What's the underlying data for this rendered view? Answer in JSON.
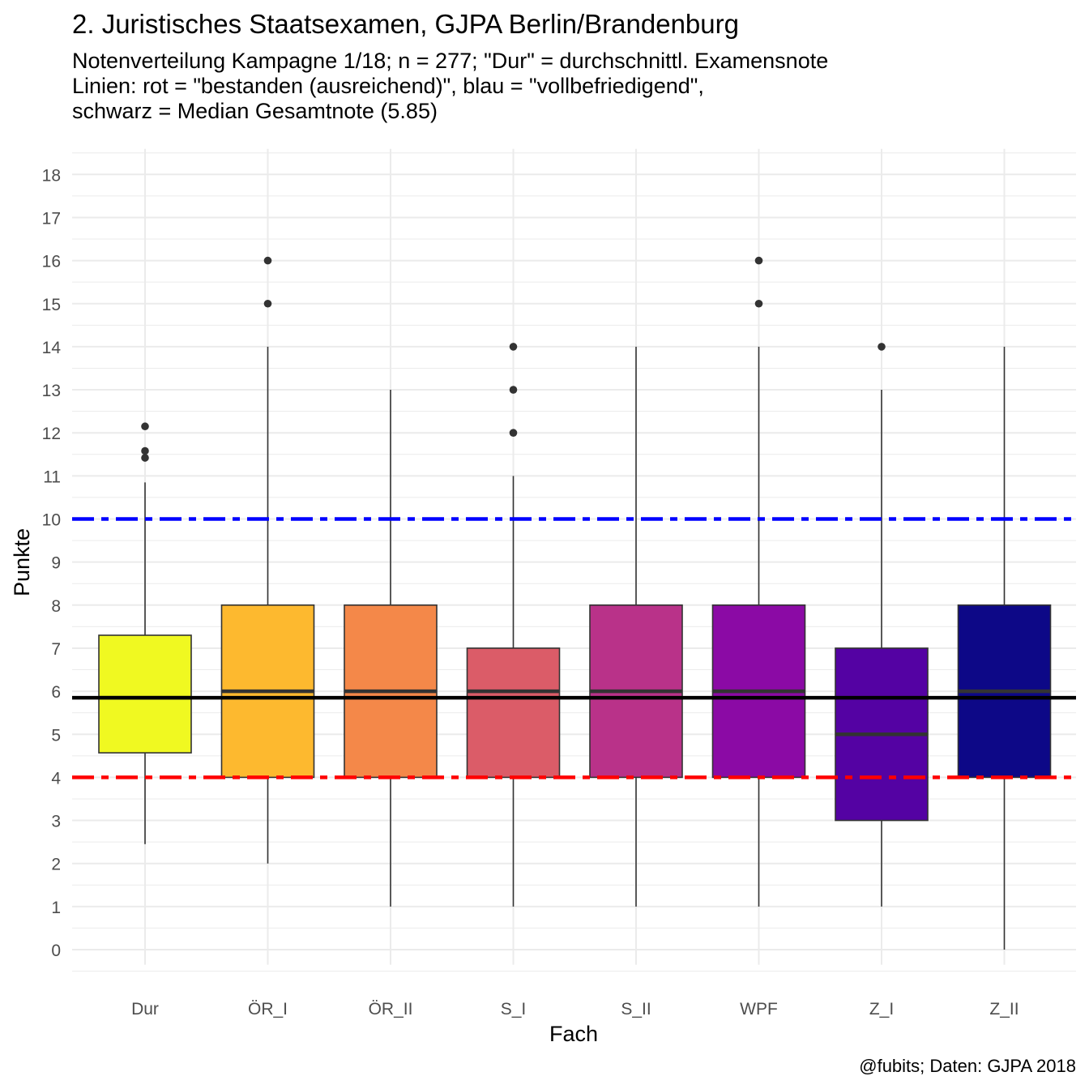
{
  "chart_data": {
    "type": "boxplot",
    "title": "2. Juristisches Staatsexamen, GJPA Berlin/Brandenburg",
    "subtitle_lines": [
      "Notenverteilung Kampagne 1/18; n = 277; \"Dur\" = durchschnittl. Examensnote",
      "Linien: rot  = \"bestanden (ausreichend)\", blau  = \"vollbefriedigend\",",
      "schwarz  = Median Gesamtnote (5.85)"
    ],
    "xlabel": "Fach",
    "ylabel": "Punkte",
    "caption": "@fubits; Daten: GJPA 2018",
    "ylim": [
      -0.5,
      18.5
    ],
    "yticks": [
      0,
      1,
      2,
      3,
      4,
      5,
      6,
      7,
      8,
      9,
      10,
      11,
      12,
      13,
      14,
      15,
      16,
      17,
      18
    ],
    "grid": true,
    "categories": [
      "Dur",
      "ÖR_I",
      "ÖR_II",
      "S_I",
      "S_II",
      "WPF",
      "Z_I",
      "Z_II"
    ],
    "boxes": [
      {
        "category": "Dur",
        "min": 2.45,
        "q1": 4.57,
        "median": 5.85,
        "q3": 7.3,
        "max": 10.85,
        "outliers": [
          11.42,
          11.58,
          12.15
        ],
        "fill": "#F0F921"
      },
      {
        "category": "ÖR_I",
        "min": 2,
        "q1": 4,
        "median": 6,
        "q3": 8,
        "max": 14,
        "outliers": [
          15,
          16
        ],
        "fill": "#FDB92F"
      },
      {
        "category": "ÖR_II",
        "min": 1,
        "q1": 4,
        "median": 6,
        "q3": 8,
        "max": 13,
        "outliers": [],
        "fill": "#F48849"
      },
      {
        "category": "S_I",
        "min": 1,
        "q1": 4,
        "median": 6,
        "q3": 7,
        "max": 11,
        "outliers": [
          12,
          13,
          14
        ],
        "fill": "#DB5C68"
      },
      {
        "category": "S_II",
        "min": 1,
        "q1": 4,
        "median": 6,
        "q3": 8,
        "max": 14,
        "outliers": [],
        "fill": "#B93289"
      },
      {
        "category": "WPF",
        "min": 1,
        "q1": 4,
        "median": 6,
        "q3": 8,
        "max": 14,
        "outliers": [
          15,
          16
        ],
        "fill": "#8B0AA5"
      },
      {
        "category": "Z_I",
        "min": 1,
        "q1": 3,
        "median": 5,
        "q3": 7,
        "max": 13,
        "outliers": [
          14
        ],
        "fill": "#5402A3"
      },
      {
        "category": "Z_II",
        "min": 0,
        "q1": 4,
        "median": 6,
        "q3": 8,
        "max": 14,
        "outliers": [],
        "fill": "#0D0887"
      }
    ],
    "reference_lines": [
      {
        "y": 10,
        "color": "#0000FF",
        "style": "dashdot"
      },
      {
        "y": 4,
        "color": "#FF0000",
        "style": "dashdot"
      },
      {
        "y": 5.85,
        "color": "#000000",
        "style": "solid"
      }
    ]
  }
}
